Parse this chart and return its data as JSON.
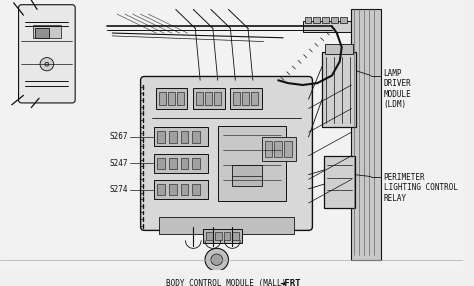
{
  "bg_color": "#f0f0f0",
  "line_color": "#111111",
  "text_color": "#111111",
  "labels": {
    "S267": "S267",
    "S247": "S247",
    "S274": "S274",
    "lamp_driver_text": "LAMP\nDRIVER\nMODULE\n(LDM)",
    "perimeter_text": "PERIMETER\nLIGHTING CONTROL\nRELAY",
    "bcm_text": "BODY CONTROL MODULE (MALL)",
    "frt_text": "◄FRT"
  },
  "font_size": 5.5,
  "font_size_sm": 5.0
}
